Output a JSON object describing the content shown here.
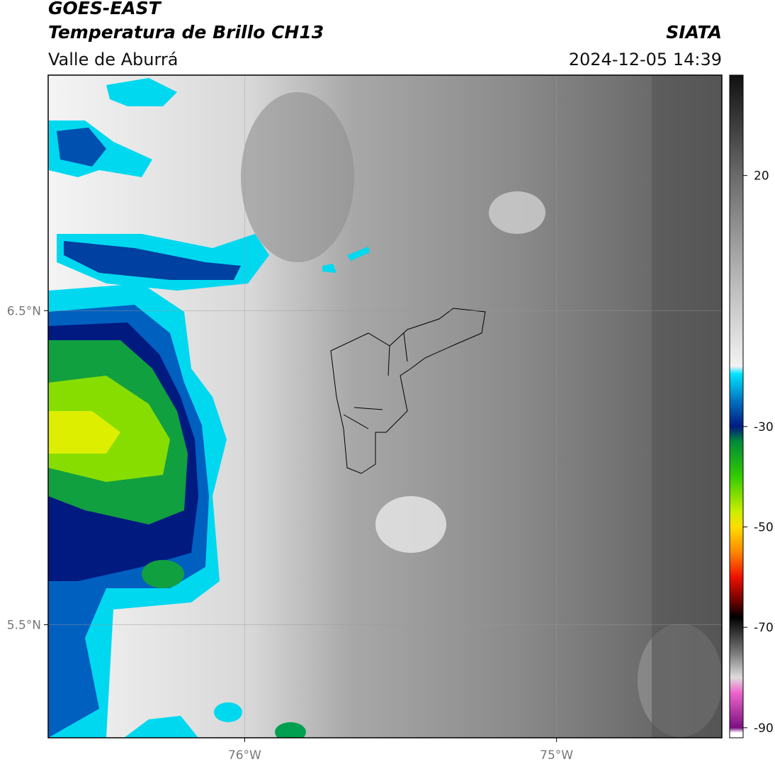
{
  "header": {
    "title": "GOES-EAST",
    "subtitle": "Temperatura de Brillo CH13",
    "region": "Valle de Aburrá",
    "source": "SIATA",
    "timestamp": "2024-12-05 14:39"
  },
  "map": {
    "xlim": [
      -76.63,
      -74.47
    ],
    "ylim": [
      5.14,
      7.25
    ],
    "xticks": [
      {
        "value": -76,
        "label": "76°W"
      },
      {
        "value": -75,
        "label": "75°W"
      }
    ],
    "yticks": [
      {
        "value": 6.5,
        "label": "6.5°N"
      },
      {
        "value": 5.5,
        "label": "5.5°N"
      }
    ],
    "grid": true
  },
  "colorbar": {
    "clim": [
      -92,
      40
    ],
    "ticks": [
      20,
      -30,
      -50,
      -70,
      -90
    ],
    "stops": [
      {
        "value": 40,
        "color": "#111111"
      },
      {
        "value": 20,
        "color": "#6a6a6a"
      },
      {
        "value": 0,
        "color": "#b5b5b5"
      },
      {
        "value": -18,
        "color": "#f2f2f2"
      },
      {
        "value": -19.5,
        "color": "#00e5ff"
      },
      {
        "value": -25,
        "color": "#0070c0"
      },
      {
        "value": -30,
        "color": "#001a80"
      },
      {
        "value": -33,
        "color": "#008a3a"
      },
      {
        "value": -40,
        "color": "#33cc00"
      },
      {
        "value": -47,
        "color": "#ccee00"
      },
      {
        "value": -50,
        "color": "#ffdd00"
      },
      {
        "value": -55,
        "color": "#ff8800"
      },
      {
        "value": -60,
        "color": "#ee1100"
      },
      {
        "value": -65,
        "color": "#660000"
      },
      {
        "value": -68,
        "color": "#000000"
      },
      {
        "value": -75,
        "color": "#777777"
      },
      {
        "value": -80,
        "color": "#dddddd"
      },
      {
        "value": -83,
        "color": "#ee66cc"
      },
      {
        "value": -90,
        "color": "#7a1080"
      },
      {
        "value": -91,
        "color": "#ffffff"
      }
    ]
  }
}
